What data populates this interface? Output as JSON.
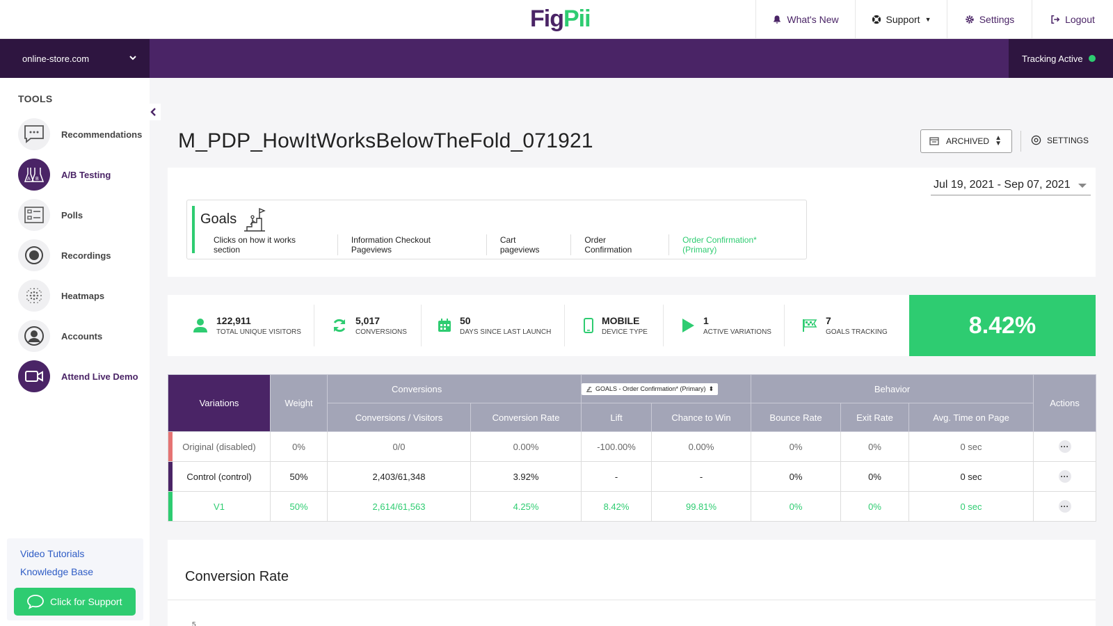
{
  "header": {
    "logo_part1": "Fig",
    "logo_part2": "Pii",
    "nav": {
      "whats_new": "What's New",
      "support": "Support",
      "settings": "Settings",
      "logout": "Logout"
    }
  },
  "site_bar": {
    "site": "online-store.com",
    "tracking": "Tracking Active",
    "tracking_color": "#2ecc71"
  },
  "sidebar": {
    "title": "TOOLS",
    "items": [
      {
        "label": "Recommendations",
        "icon": "chat-icon"
      },
      {
        "label": "A/B Testing",
        "icon": "flask-ab-icon"
      },
      {
        "label": "Polls",
        "icon": "poll-list-icon"
      },
      {
        "label": "Recordings",
        "icon": "record-icon"
      },
      {
        "label": "Heatmaps",
        "icon": "heatmap-icon"
      },
      {
        "label": "Accounts",
        "icon": "user-icon"
      },
      {
        "label": "Attend Live Demo",
        "icon": "video-camera-icon"
      }
    ],
    "help": {
      "video_tutorials": "Video Tutorials",
      "knowledge_base": "Knowledge Base",
      "support_button": "Click for Support"
    }
  },
  "main": {
    "title": "M_PDP_HowItWorksBelowTheFold_071921",
    "status": "ARCHIVED",
    "settings": "SETTINGS",
    "date_range": "Jul 19, 2021 - Sep 07, 2021",
    "goals": {
      "title": "Goals",
      "tabs": [
        "Clicks on how it works section",
        "Information Checkout Pageviews",
        "Cart pageviews",
        "Order Confirmation",
        "Order Confirmation* (Primary)"
      ]
    },
    "stats": {
      "visitors_value": "122,911",
      "visitors_label": "TOTAL UNIQUE VISITORS",
      "conversions_value": "5,017",
      "conversions_label": "CONVERSIONS",
      "days_value": "50",
      "days_label": "DAYS SINCE LAST LAUNCH",
      "device_value": "MOBILE",
      "device_label": "DEVICE TYPE",
      "variations_value": "1",
      "variations_label": "ACTIVE VARIATIONS",
      "goals_value": "7",
      "goals_label": "GOALS TRACKING",
      "lift": "8.42%"
    },
    "table": {
      "headers": {
        "variations": "Variations",
        "weight": "Weight",
        "conversions_group": "Conversions",
        "goal_select": "GOALS - Order Confirmation* (Primary)",
        "behavior_group": "Behavior",
        "actions": "Actions",
        "conv_visitors": "Conversions / Visitors",
        "conv_rate": "Conversion Rate",
        "lift": "Lift",
        "chance": "Chance to Win",
        "bounce": "Bounce Rate",
        "exit": "Exit Rate",
        "avg_time": "Avg. Time on Page"
      },
      "rows": [
        {
          "name": "Original (disabled)",
          "weight": "0%",
          "conv_visitors": "0/0",
          "conv_rate": "0.00%",
          "lift": "-100.00%",
          "chance": "0.00%",
          "bounce": "0%",
          "exit": "0%",
          "avg_time": "0 sec",
          "color": "#e57373"
        },
        {
          "name": "Control (control)",
          "weight": "50%",
          "conv_visitors": "2,403/61,348",
          "conv_rate": "3.92%",
          "lift": "-",
          "chance": "-",
          "bounce": "0%",
          "exit": "0%",
          "avg_time": "0 sec",
          "color": "#4a2466"
        },
        {
          "name": "V1",
          "weight": "50%",
          "conv_visitors": "2,614/61,563",
          "conv_rate": "4.25%",
          "lift": "8.42%",
          "chance": "99.81%",
          "bounce": "0%",
          "exit": "0%",
          "avg_time": "0 sec",
          "color": "#2ecc71"
        }
      ]
    },
    "conversion_rate": {
      "title": "Conversion Rate",
      "first_tick": "5"
    }
  },
  "colors": {
    "brand_purple": "#4a2466",
    "brand_green": "#2ecc71",
    "table_header": "#a3a5b7"
  }
}
